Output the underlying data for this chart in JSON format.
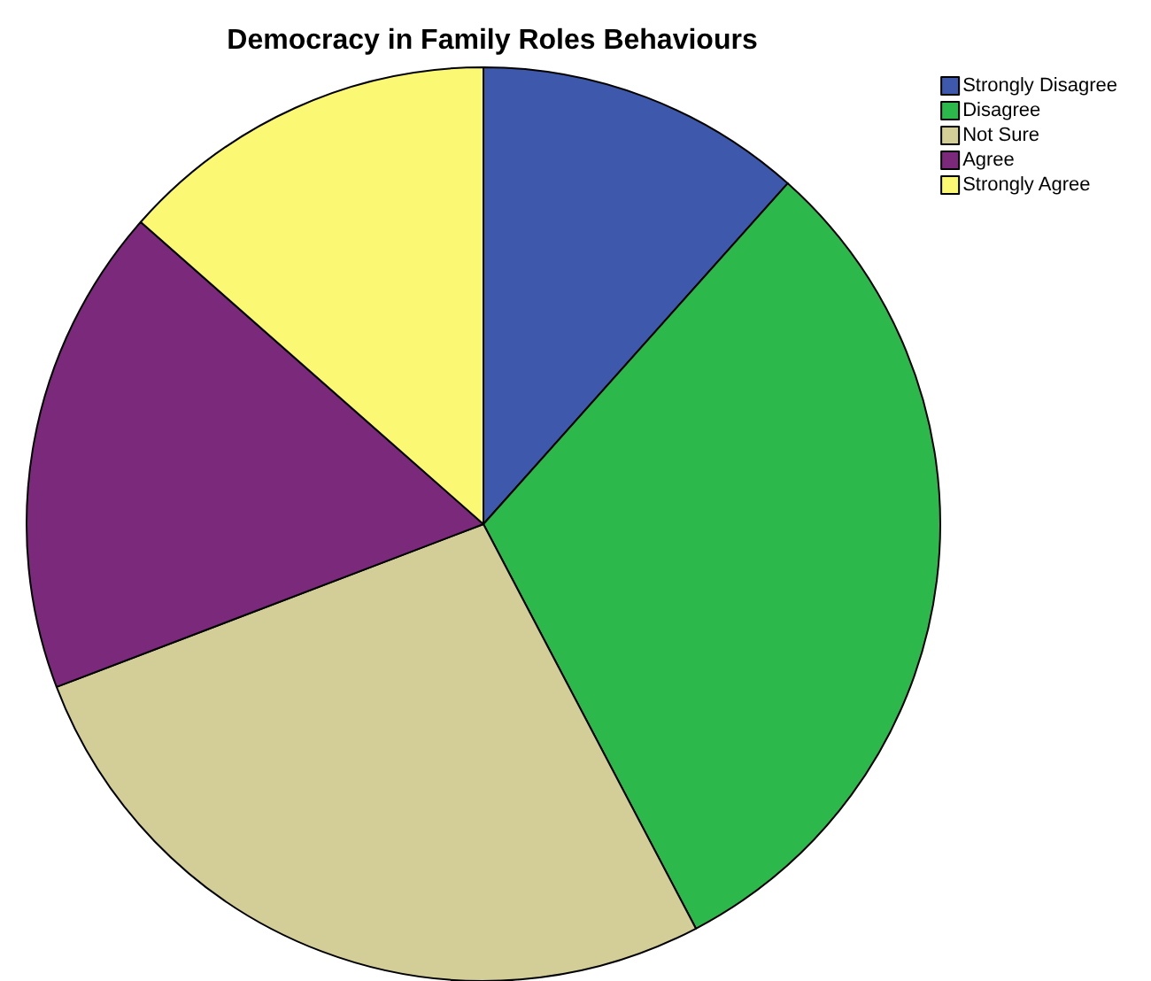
{
  "chart_data": {
    "type": "pie",
    "title": "Democracy in Family Roles Behaviours",
    "categories": [
      "Strongly Disagree",
      "Disagree",
      "Not Sure",
      "Agree",
      "Strongly Agree"
    ],
    "values": [
      11.6,
      30.7,
      26.9,
      17.3,
      13.5
    ],
    "colors": [
      "#3e58ac",
      "#2db84b",
      "#d3ce97",
      "#7b2a7b",
      "#fbf874"
    ],
    "legend": "top right"
  }
}
